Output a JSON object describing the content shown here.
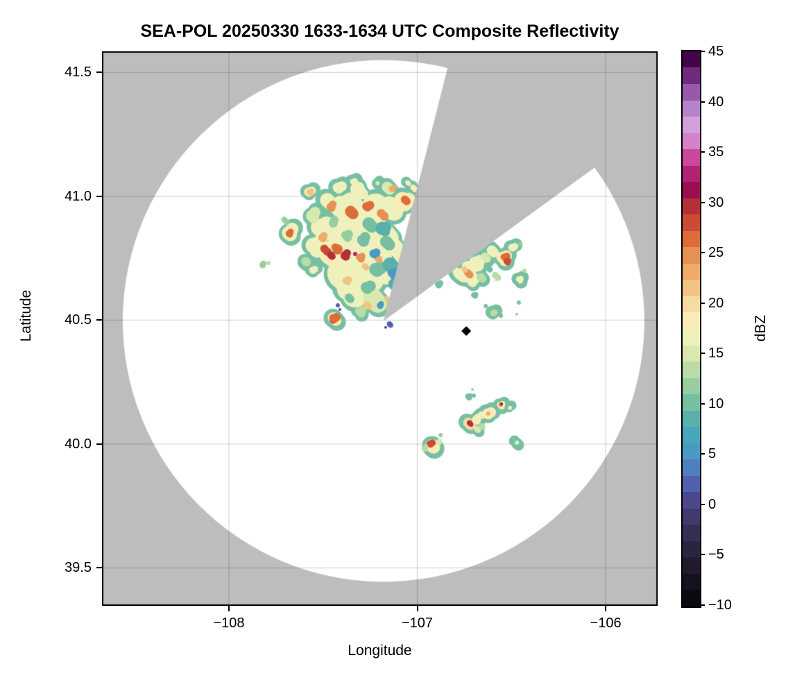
{
  "title": "SEA-POL 20250330 1633-1634 UTC Composite Reflectivity",
  "axes": {
    "xlabel": "Longitude",
    "ylabel": "Latitude",
    "x_ticks": [
      {
        "v": -108,
        "label": "−108"
      },
      {
        "v": -107,
        "label": "−107"
      },
      {
        "v": -106,
        "label": "−106"
      }
    ],
    "y_ticks": [
      {
        "v": 41.5,
        "label": "41.5"
      },
      {
        "v": 41.0,
        "label": "41.0"
      },
      {
        "v": 40.5,
        "label": "40.5"
      },
      {
        "v": 40.0,
        "label": "40.0"
      },
      {
        "v": 39.5,
        "label": "39.5"
      }
    ]
  },
  "colorbar": {
    "label": "dBZ",
    "vmin": -10,
    "vmax": 45,
    "ticks": [
      {
        "v": 45,
        "label": "45"
      },
      {
        "v": 40,
        "label": "40"
      },
      {
        "v": 35,
        "label": "35"
      },
      {
        "v": 30,
        "label": "30"
      },
      {
        "v": 25,
        "label": "25"
      },
      {
        "v": 20,
        "label": "20"
      },
      {
        "v": 15,
        "label": "15"
      },
      {
        "v": 10,
        "label": "10"
      },
      {
        "v": 5,
        "label": "5"
      },
      {
        "v": 0,
        "label": "0"
      },
      {
        "v": -5,
        "label": "−5"
      },
      {
        "v": -10,
        "label": "−10"
      }
    ],
    "band_colors": [
      "#0a0a10",
      "#15121d",
      "#201a2c",
      "#2b2440",
      "#362e55",
      "#413a6e",
      "#4b478d",
      "#5260ae",
      "#4e7fc0",
      "#4a99c5",
      "#48a6bb",
      "#59b0ab",
      "#76bfa2",
      "#98cda2",
      "#badba6",
      "#d9e8ae",
      "#eff1bc",
      "#f9ecb8",
      "#f7dba0",
      "#f3c384",
      "#eeab6a",
      "#e69054",
      "#dc6c3a",
      "#cc4b32",
      "#b52f3b",
      "#9a104e",
      "#b12273",
      "#c8499b",
      "#d581c9",
      "#d49fda",
      "#b583c8",
      "#9859ab",
      "#6f2a7e",
      "#440449"
    ]
  },
  "colors": {
    "no_data_gray": "#bdbdbd",
    "coverage_white": "#ffffff",
    "grid": "rgba(0,0,0,0.15)",
    "frame": "#000000",
    "marker": "#000000",
    "rim_green_dbz": 11
  },
  "chart_data": {
    "type": "heatmap",
    "title": "SEA-POL 20250330 1633-1634 UTC Composite Reflectivity",
    "xlabel": "Longitude",
    "ylabel": "Latitude",
    "xlim": [
      -108.674,
      -105.724
    ],
    "ylim": [
      39.347,
      41.585
    ],
    "x_tick_values": [
      -108,
      -107,
      -106
    ],
    "y_tick_values": [
      39.5,
      40.0,
      40.5,
      41.0,
      41.5
    ],
    "grid": true,
    "legend_position": "right-colorbar",
    "colorbar_range_dbz": [
      -10,
      45
    ],
    "radar": {
      "center_lon": -107.179,
      "center_lat": 40.497,
      "range_deg_lat": 1.053,
      "no_data_sector_azimuth_deg": [
        14.2,
        54.0
      ],
      "marker": {
        "lon": -106.74,
        "lat": 40.456,
        "shape": "diamond",
        "color": "#000000"
      }
    },
    "echo_cells": {
      "columns": [
        "lon",
        "lat",
        "radius_px",
        "dbz",
        "rimmed"
      ],
      "rows": [
        [
          -107.385,
          40.952,
          20,
          17,
          1
        ],
        [
          -107.252,
          40.935,
          20,
          17,
          1
        ],
        [
          -107.131,
          40.952,
          16,
          16,
          1
        ],
        [
          -107.061,
          40.974,
          12,
          18,
          1
        ],
        [
          -107.3,
          40.868,
          24,
          17,
          1
        ],
        [
          -107.167,
          40.851,
          18,
          16,
          1
        ],
        [
          -107.411,
          40.854,
          18,
          17,
          1
        ],
        [
          -107.503,
          40.868,
          14,
          16,
          1
        ],
        [
          -107.337,
          40.784,
          26,
          17,
          1
        ],
        [
          -107.208,
          40.77,
          20,
          16,
          1
        ],
        [
          -107.098,
          40.784,
          14,
          17,
          1
        ],
        [
          -107.392,
          40.7,
          22,
          17,
          1
        ],
        [
          -107.263,
          40.686,
          22,
          16,
          1
        ],
        [
          -107.153,
          40.686,
          18,
          16,
          1
        ],
        [
          -107.337,
          40.616,
          18,
          16,
          1
        ],
        [
          -107.226,
          40.588,
          16,
          15,
          1
        ],
        [
          -107.448,
          40.77,
          16,
          18,
          1
        ],
        [
          -107.54,
          40.798,
          12,
          16,
          1
        ],
        [
          -107.558,
          40.924,
          10,
          15,
          1
        ],
        [
          -107.466,
          40.98,
          10,
          17,
          1
        ],
        [
          -107.411,
          41.03,
          8,
          16,
          1
        ],
        [
          -107.3,
          41.022,
          10,
          16,
          1
        ],
        [
          -107.153,
          41.036,
          8,
          15,
          1
        ],
        [
          -107.572,
          41.016,
          7,
          18,
          1
        ],
        [
          -107.337,
          41.058,
          4,
          16,
          1
        ],
        [
          -107.211,
          41.053,
          3,
          15,
          1
        ],
        [
          -107.046,
          41.053,
          4,
          17,
          1
        ],
        [
          -107.016,
          41.033,
          4,
          18,
          1
        ],
        [
          -107.683,
          40.857,
          11,
          16,
          1
        ],
        [
          -107.591,
          40.739,
          6,
          14,
          1
        ],
        [
          -107.551,
          40.7,
          5,
          16,
          1
        ],
        [
          -107.3,
          40.532,
          7,
          13,
          1
        ],
        [
          -107.44,
          40.509,
          8,
          19,
          1
        ],
        [
          -107.241,
          40.882,
          10,
          10,
          0
        ],
        [
          -107.178,
          40.868,
          9,
          9,
          0
        ],
        [
          -107.289,
          40.826,
          8,
          11,
          0
        ],
        [
          -107.153,
          40.812,
          10,
          10,
          0
        ],
        [
          -107.208,
          40.7,
          9,
          10,
          0
        ],
        [
          -107.124,
          40.714,
          12,
          9,
          0
        ],
        [
          -107.116,
          40.644,
          10,
          9,
          0
        ],
        [
          -107.263,
          40.63,
          8,
          11,
          0
        ],
        [
          -107.374,
          40.84,
          7,
          12,
          0
        ],
        [
          -107.448,
          40.896,
          6,
          12,
          0
        ],
        [
          -107.355,
          40.588,
          6,
          11,
          0
        ],
        [
          -107.698,
          40.902,
          5,
          12,
          0
        ],
        [
          -107.823,
          40.725,
          4,
          12,
          0
        ],
        [
          -107.79,
          40.731,
          3,
          13,
          0
        ],
        [
          -106.884,
          40.644,
          5,
          10,
          0
        ],
        [
          -106.726,
          40.19,
          4,
          10,
          0
        ],
        [
          -106.7,
          40.196,
          3,
          11,
          0
        ],
        [
          -106.707,
          40.221,
          2,
          12,
          0
        ],
        [
          -106.876,
          40.036,
          3,
          12,
          0
        ],
        [
          -107.459,
          40.96,
          7,
          25,
          0
        ],
        [
          -107.344,
          40.935,
          8,
          26,
          0
        ],
        [
          -107.26,
          40.955,
          7,
          27,
          0
        ],
        [
          -107.182,
          40.927,
          6,
          24,
          0
        ],
        [
          -107.061,
          40.986,
          6,
          27,
          0
        ],
        [
          -107.131,
          41.03,
          5,
          23,
          0
        ],
        [
          -107.568,
          41.016,
          4,
          22,
          0
        ],
        [
          -107.503,
          40.834,
          6,
          23,
          0
        ],
        [
          -107.425,
          40.79,
          7,
          26,
          0
        ],
        [
          -107.484,
          40.784,
          6,
          28,
          0
        ],
        [
          -107.385,
          40.764,
          7,
          29,
          0
        ],
        [
          -107.455,
          40.762,
          5,
          30,
          0
        ],
        [
          -107.33,
          40.767,
          3,
          33,
          0
        ],
        [
          -107.3,
          40.751,
          6,
          24,
          0
        ],
        [
          -107.208,
          40.751,
          5,
          23,
          0
        ],
        [
          -107.27,
          40.714,
          5,
          22,
          0
        ],
        [
          -107.374,
          40.658,
          5,
          22,
          0
        ],
        [
          -107.68,
          40.851,
          5,
          26,
          0
        ],
        [
          -107.448,
          40.498,
          4,
          30,
          0
        ],
        [
          -107.437,
          40.504,
          6,
          27,
          0
        ],
        [
          -107.263,
          40.56,
          5,
          22,
          0
        ],
        [
          -107.16,
          40.588,
          4,
          21,
          0
        ],
        [
          -107.227,
          40.767,
          6,
          5,
          0
        ],
        [
          -107.127,
          40.686,
          7,
          5,
          0
        ],
        [
          -107.197,
          40.56,
          4,
          6,
          0
        ],
        [
          -107.142,
          40.482,
          4,
          2,
          0
        ],
        [
          -107.168,
          40.471,
          2,
          1,
          0
        ],
        [
          -107.422,
          40.56,
          3,
          2,
          0
        ],
        [
          -107.411,
          40.543,
          2,
          1,
          0
        ],
        [
          -106.741,
          40.694,
          14,
          17,
          1
        ],
        [
          -106.682,
          40.728,
          9,
          16,
          1
        ],
        [
          -106.637,
          40.756,
          7,
          15,
          1
        ],
        [
          -106.593,
          40.776,
          7,
          16,
          1
        ],
        [
          -106.542,
          40.751,
          9,
          18,
          1
        ],
        [
          -106.711,
          40.658,
          8,
          16,
          1
        ],
        [
          -106.656,
          40.672,
          6,
          14,
          1
        ],
        [
          -106.49,
          40.79,
          6,
          17,
          1
        ],
        [
          -106.726,
          40.689,
          5,
          24,
          0
        ],
        [
          -106.748,
          40.706,
          4,
          22,
          0
        ],
        [
          -106.534,
          40.753,
          6,
          26,
          0
        ],
        [
          -106.523,
          40.736,
          4,
          28,
          0
        ],
        [
          -106.778,
          40.722,
          4,
          11,
          0
        ],
        [
          -106.615,
          40.706,
          4,
          11,
          0
        ],
        [
          -106.578,
          40.678,
          5,
          13,
          0
        ],
        [
          -106.586,
          40.661,
          2,
          18,
          0
        ],
        [
          -106.453,
          40.807,
          3,
          12,
          0
        ],
        [
          -106.431,
          40.7,
          3,
          13,
          0
        ],
        [
          -106.693,
          40.599,
          4,
          10,
          0
        ],
        [
          -106.637,
          40.557,
          3,
          11,
          0
        ],
        [
          -106.461,
          40.571,
          3,
          10,
          0
        ],
        [
          -106.457,
          40.664,
          4,
          16,
          1
        ],
        [
          -106.468,
          40.65,
          2,
          10,
          0
        ],
        [
          -106.472,
          40.524,
          2,
          12,
          0
        ],
        [
          -106.593,
          40.527,
          4,
          14,
          1
        ],
        [
          -106.556,
          40.518,
          3,
          11,
          0
        ],
        [
          -106.921,
          39.997,
          9,
          19,
          1
        ],
        [
          -106.928,
          40.0,
          5,
          28,
          0
        ],
        [
          -106.887,
          40.008,
          4,
          15,
          0
        ],
        [
          -106.961,
          39.983,
          4,
          14,
          0
        ],
        [
          -106.718,
          40.081,
          8,
          20,
          1
        ],
        [
          -106.718,
          40.084,
          4,
          29,
          0
        ],
        [
          -106.689,
          40.101,
          6,
          17,
          1
        ],
        [
          -106.656,
          40.118,
          5,
          16,
          1
        ],
        [
          -106.619,
          40.12,
          7,
          18,
          1
        ],
        [
          -106.623,
          40.123,
          3,
          23,
          0
        ],
        [
          -106.682,
          40.062,
          5,
          15,
          1
        ],
        [
          -106.652,
          40.07,
          4,
          13,
          0
        ],
        [
          -106.556,
          40.157,
          5,
          18,
          1
        ],
        [
          -106.556,
          40.16,
          3,
          26,
          0
        ],
        [
          -106.552,
          40.163,
          1.5,
          44,
          0
        ],
        [
          -106.508,
          40.146,
          3,
          16,
          1
        ],
        [
          -106.471,
          40.006,
          3,
          16,
          1
        ]
      ]
    }
  }
}
